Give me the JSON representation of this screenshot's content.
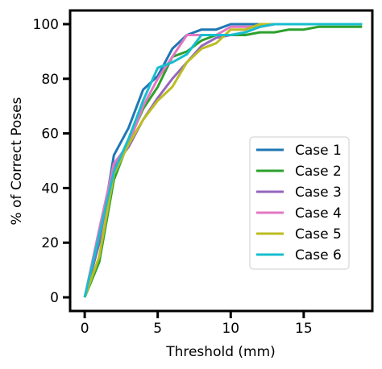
{
  "chart_data": {
    "type": "line",
    "title": "",
    "xlabel": "Threshold (mm)",
    "ylabel": "% of Correct Poses",
    "xlim": [
      -1,
      19.7
    ],
    "ylim": [
      -5,
      105
    ],
    "xticks": [
      0,
      5,
      10,
      15
    ],
    "yticks": [
      0,
      20,
      40,
      60,
      80,
      100
    ],
    "grid": false,
    "legend_position": "center-right",
    "series": [
      {
        "name": "Case 1",
        "color": "#1f77b4",
        "x": [
          0,
          1,
          2,
          3,
          4,
          5,
          6,
          7,
          8,
          9,
          10,
          11,
          12,
          13,
          14,
          15,
          16,
          17,
          18,
          19
        ],
        "y": [
          0,
          20,
          52,
          62,
          76,
          81,
          91,
          96,
          98,
          98,
          100,
          100,
          100,
          100,
          100,
          100,
          100,
          100,
          100,
          100
        ]
      },
      {
        "name": "Case 2",
        "color": "#2ca02c",
        "x": [
          0,
          1,
          2,
          3,
          4,
          5,
          6,
          7,
          8,
          9,
          10,
          11,
          12,
          13,
          14,
          15,
          16,
          17,
          18,
          19
        ],
        "y": [
          0,
          13,
          43,
          57,
          69,
          77,
          88,
          90,
          94,
          96,
          96,
          96,
          97,
          97,
          98,
          98,
          99,
          99,
          99,
          99
        ]
      },
      {
        "name": "Case 3",
        "color": "#9467bd",
        "x": [
          0,
          1,
          2,
          3,
          4,
          5,
          6,
          7,
          8,
          9,
          10,
          11,
          12,
          13,
          14,
          15,
          16,
          17,
          18,
          19
        ],
        "y": [
          0,
          21,
          48,
          55,
          65,
          73,
          80,
          86,
          92,
          95,
          96,
          97,
          99,
          100,
          100,
          100,
          100,
          100,
          100,
          100
        ]
      },
      {
        "name": "Case 4",
        "color": "#e377c2",
        "x": [
          0,
          1,
          2,
          3,
          4,
          5,
          6,
          7,
          8,
          9,
          10,
          11,
          12,
          13,
          14,
          15,
          16,
          17,
          18,
          19
        ],
        "y": [
          0,
          25,
          49,
          56,
          70,
          80,
          88,
          96,
          96,
          96,
          99,
          99,
          99,
          100,
          100,
          100,
          100,
          100,
          100,
          100
        ]
      },
      {
        "name": "Case 5",
        "color": "#bcbd22",
        "x": [
          0,
          1,
          2,
          3,
          4,
          5,
          6,
          7,
          8,
          9,
          10,
          11,
          12,
          13,
          14,
          15,
          16,
          17,
          18,
          19
        ],
        "y": [
          0,
          15,
          45,
          56,
          65,
          72,
          77,
          86,
          91,
          93,
          98,
          98,
          100,
          100,
          100,
          100,
          100,
          100,
          100,
          100
        ]
      },
      {
        "name": "Case 6",
        "color": "#17becf",
        "x": [
          0,
          1,
          2,
          3,
          4,
          5,
          6,
          7,
          8,
          9,
          10,
          11,
          12,
          13,
          14,
          15,
          16,
          17,
          18,
          19
        ],
        "y": [
          0,
          23,
          46,
          58,
          72,
          84,
          86,
          89,
          96,
          96,
          96,
          97,
          99,
          100,
          100,
          100,
          100,
          100,
          100,
          100
        ]
      }
    ]
  }
}
